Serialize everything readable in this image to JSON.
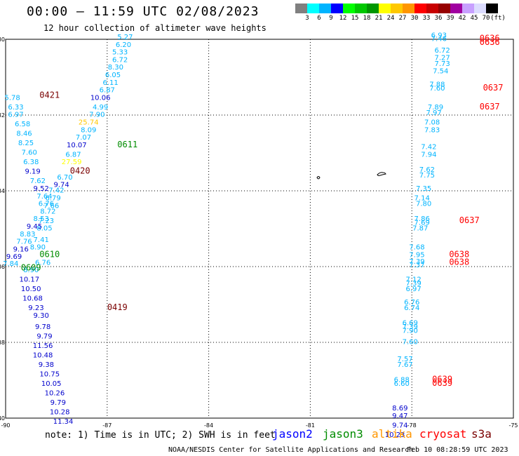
{
  "header": {
    "title": "00:00 — 11:59 UTC 02/08/2023",
    "subtitle": "12 hour collection of altimeter wave heights"
  },
  "color_scale": {
    "colors": [
      "#808080",
      "#00ffff",
      "#00b4ff",
      "#0000ff",
      "#00ff00",
      "#00c800",
      "#009600",
      "#ffff00",
      "#ffc800",
      "#ff9600",
      "#ff0000",
      "#c80000",
      "#960000",
      "#a000a0",
      "#c8a0ff",
      "#dcdcff",
      "#000000"
    ],
    "labels": [
      "3",
      "6",
      "9",
      "12",
      "15",
      "18",
      "21",
      "24",
      "27",
      "30",
      "33",
      "36",
      "39",
      "42",
      "45",
      "70",
      "(ft)"
    ]
  },
  "axes": {
    "x_labels": [
      "-90",
      "-87",
      "-84",
      "-81",
      "-78",
      "-75"
    ],
    "y_labels": [
      "30",
      "32",
      "34",
      "36",
      "38",
      "40"
    ]
  },
  "tracks": [
    {
      "satellite": "track-a",
      "labels": [
        {
          "lon": -86.47,
          "lat": 30.0,
          "text": "5.27",
          "color": "#00b4ff"
        },
        {
          "lon": -86.52,
          "lat": 30.2,
          "text": "6.20",
          "color": "#00b4ff"
        },
        {
          "lon": -86.62,
          "lat": 30.4,
          "text": "5.33",
          "color": "#00b4ff"
        },
        {
          "lon": -86.62,
          "lat": 30.6,
          "text": "6.72",
          "color": "#00b4ff"
        },
        {
          "lon": -86.75,
          "lat": 30.8,
          "text": "8.30",
          "color": "#00b4ff"
        },
        {
          "lon": -86.83,
          "lat": 31.0,
          "text": "6.05",
          "color": "#00b4ff"
        },
        {
          "lon": -86.9,
          "lat": 31.2,
          "text": "6.11",
          "color": "#00b4ff"
        },
        {
          "lon": -87.0,
          "lat": 31.4,
          "text": "6.87",
          "color": "#00b4ff"
        },
        {
          "lon": -87.2,
          "lat": 31.6,
          "text": "10.06",
          "color": "#0000cc"
        },
        {
          "lon": -87.2,
          "lat": 31.85,
          "text": "4.99",
          "color": "#00b4ff"
        },
        {
          "lon": -87.3,
          "lat": 32.05,
          "text": "7.90",
          "color": "#00b4ff"
        },
        {
          "lon": -87.55,
          "lat": 32.25,
          "text": "25.74",
          "color": "#ffc800"
        },
        {
          "lon": -87.55,
          "lat": 32.45,
          "text": "8.09",
          "color": "#00b4ff"
        },
        {
          "lon": -87.7,
          "lat": 32.65,
          "text": "7.07",
          "color": "#00b4ff"
        },
        {
          "lon": -87.9,
          "lat": 32.85,
          "text": "10.07",
          "color": "#0000cc"
        },
        {
          "lon": -88.0,
          "lat": 33.1,
          "text": "6.87",
          "color": "#00b4ff"
        },
        {
          "lon": -88.05,
          "lat": 33.3,
          "text": "27.59",
          "color": "#ffff00"
        },
        {
          "lon": -88.25,
          "lat": 33.7,
          "text": "6.70",
          "color": "#00b4ff"
        },
        {
          "lon": -88.35,
          "lat": 33.9,
          "text": "9.74",
          "color": "#0000cc"
        },
        {
          "lon": -88.5,
          "lat": 34.05,
          "text": "7.42",
          "color": "#00b4ff"
        },
        {
          "lon": -88.6,
          "lat": 34.25,
          "text": "6.79",
          "color": "#00b4ff"
        },
        {
          "lon": -88.65,
          "lat": 34.45,
          "text": "7.66",
          "color": "#00b4ff"
        },
        {
          "lon": -88.8,
          "lat": 34.85,
          "text": "7.23",
          "color": "#00b4ff"
        },
        {
          "lon": -88.85,
          "lat": 35.05,
          "text": "8.05",
          "color": "#00b4ff"
        },
        {
          "lon": -88.95,
          "lat": 35.35,
          "text": "7.41",
          "color": "#00b4ff"
        },
        {
          "lon": -89.05,
          "lat": 35.55,
          "text": "8.90",
          "color": "#00b4ff"
        },
        {
          "lon": -88.9,
          "lat": 35.95,
          "text": "6.76",
          "color": "#00b4ff"
        },
        {
          "lon": -89.25,
          "lat": 36.15,
          "text": "8.90",
          "color": "#00b4ff"
        },
        {
          "lon": -89.3,
          "lat": 36.4,
          "text": "10.17",
          "color": "#0000cc"
        },
        {
          "lon": -89.25,
          "lat": 36.65,
          "text": "10.50",
          "color": "#0000cc"
        },
        {
          "lon": -89.2,
          "lat": 36.9,
          "text": "10.68",
          "color": "#0000cc"
        },
        {
          "lon": -89.1,
          "lat": 37.15,
          "text": "9.23",
          "color": "#0000cc"
        },
        {
          "lon": -88.95,
          "lat": 37.35,
          "text": "9.30",
          "color": "#0000cc"
        },
        {
          "lon": -88.9,
          "lat": 37.65,
          "text": "9.78",
          "color": "#0000cc"
        },
        {
          "lon": -88.85,
          "lat": 37.9,
          "text": "9.79",
          "color": "#0000cc"
        },
        {
          "lon": -88.9,
          "lat": 38.15,
          "text": "11.56",
          "color": "#0000cc"
        },
        {
          "lon": -88.9,
          "lat": 38.4,
          "text": "10.48",
          "color": "#0000cc"
        },
        {
          "lon": -88.8,
          "lat": 38.65,
          "text": "9.38",
          "color": "#0000cc"
        },
        {
          "lon": -88.7,
          "lat": 38.9,
          "text": "10.75",
          "color": "#0000cc"
        },
        {
          "lon": -88.65,
          "lat": 39.15,
          "text": "10.05",
          "color": "#0000cc"
        },
        {
          "lon": -88.55,
          "lat": 39.4,
          "text": "10.26",
          "color": "#0000cc"
        },
        {
          "lon": -88.45,
          "lat": 39.65,
          "text": "9.79",
          "color": "#0000cc"
        },
        {
          "lon": -88.4,
          "lat": 39.9,
          "text": "10.28",
          "color": "#0000cc"
        },
        {
          "lon": -88.3,
          "lat": 40.15,
          "text": "11.34",
          "color": "#0000cc"
        }
      ]
    },
    {
      "satellite": "track-b",
      "labels": [
        {
          "lon": -89.8,
          "lat": 31.6,
          "text": "5.78",
          "color": "#00b4ff"
        },
        {
          "lon": -89.7,
          "lat": 31.85,
          "text": "6.33",
          "color": "#00b4ff"
        },
        {
          "lon": -89.7,
          "lat": 32.05,
          "text": "6.97",
          "color": "#00b4ff"
        },
        {
          "lon": -89.5,
          "lat": 32.3,
          "text": "6.58",
          "color": "#00b4ff"
        },
        {
          "lon": -89.45,
          "lat": 32.55,
          "text": "8.46",
          "color": "#00b4ff"
        },
        {
          "lon": -89.4,
          "lat": 32.8,
          "text": "8.25",
          "color": "#00b4ff"
        },
        {
          "lon": -89.3,
          "lat": 33.05,
          "text": "7.60",
          "color": "#00b4ff"
        },
        {
          "lon": -89.25,
          "lat": 33.3,
          "text": "6.38",
          "color": "#00b4ff"
        },
        {
          "lon": -89.2,
          "lat": 33.55,
          "text": "9.19",
          "color": "#0000cc"
        },
        {
          "lon": -89.05,
          "lat": 33.8,
          "text": "7.62",
          "color": "#00b4ff"
        },
        {
          "lon": -88.95,
          "lat": 34.0,
          "text": "9.52",
          "color": "#0000cc"
        },
        {
          "lon": -88.85,
          "lat": 34.2,
          "text": "7.64",
          "color": "#00b4ff"
        },
        {
          "lon": -88.8,
          "lat": 34.4,
          "text": "6.76",
          "color": "#00b4ff"
        },
        {
          "lon": -88.75,
          "lat": 34.6,
          "text": "8.72",
          "color": "#00b4ff"
        },
        {
          "lon": -88.95,
          "lat": 34.8,
          "text": "8.53",
          "color": "#00b4ff"
        },
        {
          "lon": -89.15,
          "lat": 35.0,
          "text": "9.45",
          "color": "#0000cc"
        },
        {
          "lon": -89.35,
          "lat": 35.2,
          "text": "8.83",
          "color": "#00b4ff"
        },
        {
          "lon": -89.45,
          "lat": 35.4,
          "text": "7.76",
          "color": "#00b4ff"
        },
        {
          "lon": -89.55,
          "lat": 35.6,
          "text": "9.16",
          "color": "#0000cc"
        },
        {
          "lon": -89.75,
          "lat": 35.8,
          "text": "9.69",
          "color": "#0000cc"
        },
        {
          "lon": -89.85,
          "lat": 35.98,
          "text": "7.84",
          "color": "#00b4ff"
        }
      ]
    },
    {
      "satellite": "track-c",
      "labels": [
        {
          "lon": -77.2,
          "lat": 29.95,
          "text": "6.93",
          "color": "#00b4ff"
        },
        {
          "lon": -77.2,
          "lat": 30.05,
          "text": "7.46",
          "color": "#00b4ff"
        },
        {
          "lon": -77.1,
          "lat": 30.35,
          "text": "6.72",
          "color": "#00b4ff"
        },
        {
          "lon": -77.1,
          "lat": 30.55,
          "text": "7.27",
          "color": "#00b4ff"
        },
        {
          "lon": -77.1,
          "lat": 30.7,
          "text": "7.73",
          "color": "#00b4ff"
        },
        {
          "lon": -77.15,
          "lat": 30.9,
          "text": "7.54",
          "color": "#00b4ff"
        },
        {
          "lon": -77.25,
          "lat": 31.25,
          "text": "7.88",
          "color": "#00b4ff"
        },
        {
          "lon": -77.25,
          "lat": 31.35,
          "text": "7.60",
          "color": "#00b4ff"
        },
        {
          "lon": -77.3,
          "lat": 31.85,
          "text": "7.89",
          "color": "#00b4ff"
        },
        {
          "lon": -77.35,
          "lat": 32.0,
          "text": "7.97",
          "color": "#00b4ff"
        },
        {
          "lon": -77.4,
          "lat": 32.25,
          "text": "7.08",
          "color": "#00b4ff"
        },
        {
          "lon": -77.4,
          "lat": 32.45,
          "text": "7.83",
          "color": "#00b4ff"
        },
        {
          "lon": -77.5,
          "lat": 32.9,
          "text": "7.42",
          "color": "#00b4ff"
        },
        {
          "lon": -77.5,
          "lat": 33.1,
          "text": "7.94",
          "color": "#00b4ff"
        },
        {
          "lon": -77.55,
          "lat": 33.5,
          "text": "7.62",
          "color": "#00b4ff"
        },
        {
          "lon": -77.55,
          "lat": 33.65,
          "text": "7.75",
          "color": "#00b4ff"
        },
        {
          "lon": -77.65,
          "lat": 34.0,
          "text": "7.35",
          "color": "#00b4ff"
        },
        {
          "lon": -77.7,
          "lat": 34.25,
          "text": "7.14",
          "color": "#00b4ff"
        },
        {
          "lon": -77.65,
          "lat": 34.4,
          "text": "7.80",
          "color": "#00b4ff"
        },
        {
          "lon": -77.7,
          "lat": 34.8,
          "text": "7.86",
          "color": "#00b4ff"
        },
        {
          "lon": -77.7,
          "lat": 34.9,
          "text": "7.69",
          "color": "#00b4ff"
        },
        {
          "lon": -77.75,
          "lat": 35.05,
          "text": "7.87",
          "color": "#00b4ff"
        },
        {
          "lon": -77.85,
          "lat": 35.55,
          "text": "7.68",
          "color": "#00b4ff"
        },
        {
          "lon": -77.85,
          "lat": 35.75,
          "text": "7.95",
          "color": "#00b4ff"
        },
        {
          "lon": -77.85,
          "lat": 35.93,
          "text": "7.39",
          "color": "#00b4ff"
        },
        {
          "lon": -77.85,
          "lat": 36.02,
          "text": "7.37",
          "color": "#00b4ff"
        },
        {
          "lon": -77.95,
          "lat": 36.4,
          "text": "7.12",
          "color": "#00b4ff"
        },
        {
          "lon": -77.95,
          "lat": 36.5,
          "text": "7.39",
          "color": "#00b4ff"
        },
        {
          "lon": -77.95,
          "lat": 36.65,
          "text": "6.97",
          "color": "#00b4ff"
        },
        {
          "lon": -78.0,
          "lat": 37.0,
          "text": "6.76",
          "color": "#00b4ff"
        },
        {
          "lon": -78.0,
          "lat": 37.15,
          "text": "6.74",
          "color": "#00b4ff"
        },
        {
          "lon": -78.05,
          "lat": 37.55,
          "text": "6.69",
          "color": "#00b4ff"
        },
        {
          "lon": -78.05,
          "lat": 37.65,
          "text": "7.39",
          "color": "#00b4ff"
        },
        {
          "lon": -78.05,
          "lat": 37.75,
          "text": "7.90",
          "color": "#00b4ff"
        },
        {
          "lon": -78.05,
          "lat": 38.05,
          "text": "7.60",
          "color": "#00b4ff"
        },
        {
          "lon": -78.2,
          "lat": 38.5,
          "text": "7.57",
          "color": "#00b4ff"
        },
        {
          "lon": -78.2,
          "lat": 38.65,
          "text": "7.67",
          "color": "#00b4ff"
        },
        {
          "lon": -78.3,
          "lat": 39.05,
          "text": "6.88",
          "color": "#00b4ff"
        },
        {
          "lon": -78.3,
          "lat": 39.15,
          "text": "6.60",
          "color": "#00b4ff"
        },
        {
          "lon": -78.35,
          "lat": 39.8,
          "text": "8.69",
          "color": "#0000cc"
        },
        {
          "lon": -78.35,
          "lat": 40.0,
          "text": "9.47",
          "color": "#0000cc"
        },
        {
          "lon": -78.35,
          "lat": 40.25,
          "text": "9.74",
          "color": "#0000cc"
        },
        {
          "lon": -78.5,
          "lat": 40.5,
          "text": "10.23",
          "color": "#0000cc"
        }
      ]
    }
  ],
  "time_labels": [
    {
      "lon": -88.7,
      "lat": 31.55,
      "text": "0421",
      "color": "#7a0000"
    },
    {
      "lon": -86.4,
      "lat": 32.85,
      "text": "0611",
      "color": "#008c00"
    },
    {
      "lon": -87.8,
      "lat": 33.55,
      "text": "0420",
      "color": "#7a0000"
    },
    {
      "lon": -88.7,
      "lat": 35.75,
      "text": "0610",
      "color": "#008c00"
    },
    {
      "lon": -89.25,
      "lat": 36.1,
      "text": "0609",
      "color": "#008c00"
    },
    {
      "lon": -86.7,
      "lat": 37.15,
      "text": "0419",
      "color": "#7a0000"
    },
    {
      "lon": -75.7,
      "lat": 30.05,
      "text": "0636",
      "color": "#ff0000"
    },
    {
      "lon": -75.7,
      "lat": 30.15,
      "text": "0636",
      "color": "#ff0000"
    },
    {
      "lon": -75.6,
      "lat": 31.35,
      "text": "0637",
      "color": "#ff0000"
    },
    {
      "lon": -75.7,
      "lat": 31.85,
      "text": "0637",
      "color": "#ff0000"
    },
    {
      "lon": -76.3,
      "lat": 34.85,
      "text": "0637",
      "color": "#ff0000"
    },
    {
      "lon": -76.6,
      "lat": 35.75,
      "text": "0638",
      "color": "#ff0000"
    },
    {
      "lon": -76.6,
      "lat": 35.95,
      "text": "0638",
      "color": "#ff0000"
    },
    {
      "lon": -77.1,
      "lat": 39.05,
      "text": "0639",
      "color": "#ff0000"
    },
    {
      "lon": -77.1,
      "lat": 39.15,
      "text": "0639",
      "color": "#ff0000"
    }
  ],
  "note": "note: 1) Time is in UTC; 2) SWH is in feet",
  "legend": [
    {
      "name": "jason2",
      "color": "#0000ff"
    },
    {
      "name": "jason3",
      "color": "#008c00"
    },
    {
      "name": "altika",
      "color": "#ff9600"
    },
    {
      "name": "cryosat",
      "color": "#ff0000"
    },
    {
      "name": "s3a",
      "color": "#7a0000"
    }
  ],
  "footer": {
    "credit": "NOAA/NESDIS Center for Satellite Applications and Research",
    "timestamp": "Feb 10 08:28:59 UTC 2023"
  }
}
